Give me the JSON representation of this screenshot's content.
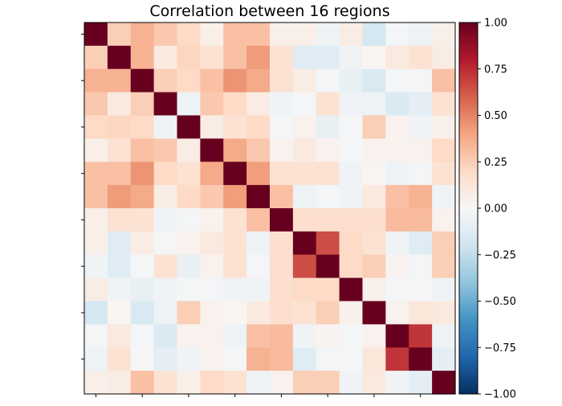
{
  "chart_data": {
    "type": "heatmap",
    "title": "Correlation between 16 regions",
    "xlabel": "",
    "ylabel": "",
    "colormap": "RdBu_r",
    "vmin": -1.0,
    "vmax": 1.0,
    "colorbar_ticks": [
      -1.0,
      -0.75,
      -0.5,
      -0.25,
      0.0,
      0.25,
      0.5,
      0.75,
      1.0
    ],
    "colorbar_tick_labels": [
      "−1.00",
      "−0.75",
      "−0.50",
      "−0.25",
      "0.00",
      "0.25",
      "0.50",
      "0.75",
      "1.00"
    ],
    "row_labels": [
      "",
      "",
      "",
      "",
      "",
      "",
      "",
      "",
      "",
      "",
      "",
      "",
      "",
      "",
      "",
      ""
    ],
    "col_labels": [
      "",
      "",
      "",
      "",
      "",
      "",
      "",
      "",
      "",
      "",
      "",
      "",
      "",
      "",
      "",
      ""
    ],
    "matrix": [
      [
        1.0,
        0.25,
        0.35,
        0.27,
        0.2,
        0.06,
        0.3,
        0.3,
        0.06,
        0.06,
        -0.04,
        0.08,
        -0.18,
        -0.02,
        -0.06,
        0.06
      ],
      [
        0.25,
        1.0,
        0.35,
        0.1,
        0.22,
        0.15,
        0.3,
        0.43,
        0.15,
        -0.12,
        -0.12,
        -0.04,
        0.02,
        0.1,
        0.15,
        0.08
      ],
      [
        0.35,
        0.35,
        1.0,
        0.25,
        0.2,
        0.3,
        0.45,
        0.38,
        0.15,
        0.08,
        -0.02,
        -0.08,
        -0.16,
        -0.02,
        -0.02,
        0.3
      ],
      [
        0.27,
        0.1,
        0.25,
        1.0,
        -0.05,
        0.27,
        0.2,
        0.08,
        -0.04,
        -0.02,
        0.15,
        -0.04,
        -0.06,
        -0.15,
        -0.1,
        0.15
      ],
      [
        0.2,
        0.22,
        0.2,
        -0.05,
        1.0,
        0.08,
        0.15,
        0.2,
        -0.02,
        0.04,
        -0.08,
        -0.02,
        0.25,
        0.04,
        -0.04,
        0.06
      ],
      [
        0.06,
        0.15,
        0.3,
        0.27,
        0.08,
        1.0,
        0.38,
        0.27,
        0.04,
        0.1,
        0.04,
        -0.02,
        0.04,
        0.04,
        0.04,
        0.2
      ],
      [
        0.3,
        0.3,
        0.45,
        0.2,
        0.15,
        0.38,
        1.0,
        0.42,
        0.15,
        0.15,
        0.15,
        -0.04,
        0.02,
        -0.06,
        -0.02,
        0.15
      ],
      [
        0.3,
        0.43,
        0.38,
        0.08,
        0.2,
        0.27,
        0.42,
        1.0,
        0.3,
        -0.06,
        -0.02,
        -0.04,
        0.1,
        0.3,
        0.35,
        -0.04
      ],
      [
        0.06,
        0.15,
        0.15,
        -0.04,
        -0.02,
        0.04,
        0.15,
        0.3,
        1.0,
        0.17,
        0.17,
        0.17,
        0.17,
        0.32,
        0.32,
        0.04
      ],
      [
        0.06,
        -0.12,
        0.08,
        -0.02,
        0.04,
        0.1,
        0.15,
        -0.06,
        0.17,
        1.0,
        0.65,
        0.2,
        0.15,
        -0.04,
        -0.12,
        0.25
      ],
      [
        -0.04,
        -0.12,
        -0.02,
        0.15,
        -0.08,
        0.04,
        0.15,
        -0.02,
        0.17,
        0.65,
        1.0,
        0.2,
        0.25,
        0.03,
        -0.02,
        0.25
      ],
      [
        0.08,
        -0.04,
        -0.08,
        -0.04,
        -0.02,
        -0.02,
        -0.04,
        -0.04,
        0.17,
        0.2,
        0.2,
        1.0,
        0.05,
        -0.02,
        -0.02,
        -0.04
      ],
      [
        -0.18,
        0.02,
        -0.16,
        -0.06,
        0.25,
        0.04,
        0.02,
        0.1,
        0.17,
        0.15,
        0.25,
        0.05,
        1.0,
        0.04,
        0.12,
        0.1
      ],
      [
        -0.02,
        0.1,
        -0.02,
        -0.15,
        0.04,
        0.04,
        -0.06,
        0.3,
        0.32,
        -0.04,
        0.03,
        -0.02,
        0.04,
        1.0,
        0.72,
        -0.04
      ],
      [
        -0.06,
        0.15,
        -0.02,
        -0.1,
        -0.04,
        0.04,
        -0.02,
        0.35,
        0.32,
        -0.12,
        -0.02,
        -0.02,
        0.12,
        0.72,
        1.0,
        -0.1
      ],
      [
        0.06,
        0.08,
        0.3,
        0.15,
        0.06,
        0.2,
        0.15,
        -0.04,
        0.04,
        0.25,
        0.25,
        -0.04,
        0.1,
        -0.04,
        -0.1,
        1.0
      ]
    ]
  }
}
